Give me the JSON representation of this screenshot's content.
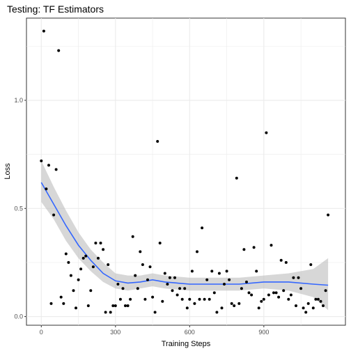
{
  "chart_data": {
    "type": "scatter",
    "title": "Testing: TF Estimators",
    "xlabel": "Training Steps",
    "ylabel": "Loss",
    "xlim": [
      -60,
      1230
    ],
    "ylim": [
      -0.04,
      1.38
    ],
    "x_ticks": [
      0,
      300,
      600,
      900
    ],
    "x_tick_labels": [
      "0",
      "300",
      "600",
      "900"
    ],
    "y_ticks": [
      0.0,
      0.5,
      1.0
    ],
    "y_tick_labels": [
      "0.0",
      "0.5",
      "1.0"
    ],
    "grid": true,
    "legend": "none",
    "colors": {
      "points": "#000000",
      "smooth_line": "#3366FF",
      "confidence_band": "#bdbdbd",
      "gridline": "#ebebeb",
      "panel_border": "#333333"
    },
    "points": [
      {
        "x": 0,
        "y": 0.72
      },
      {
        "x": 10,
        "y": 1.32
      },
      {
        "x": 20,
        "y": 0.59
      },
      {
        "x": 30,
        "y": 0.7
      },
      {
        "x": 40,
        "y": 0.06
      },
      {
        "x": 50,
        "y": 0.47
      },
      {
        "x": 60,
        "y": 0.68
      },
      {
        "x": 70,
        "y": 1.23
      },
      {
        "x": 80,
        "y": 0.09
      },
      {
        "x": 90,
        "y": 0.06
      },
      {
        "x": 100,
        "y": 0.29
      },
      {
        "x": 110,
        "y": 0.25
      },
      {
        "x": 120,
        "y": 0.19
      },
      {
        "x": 130,
        "y": 0.12
      },
      {
        "x": 140,
        "y": 0.04
      },
      {
        "x": 150,
        "y": 0.17
      },
      {
        "x": 160,
        "y": 0.22
      },
      {
        "x": 170,
        "y": 0.27
      },
      {
        "x": 180,
        "y": 0.28
      },
      {
        "x": 190,
        "y": 0.05
      },
      {
        "x": 200,
        "y": 0.12
      },
      {
        "x": 210,
        "y": 0.23
      },
      {
        "x": 220,
        "y": 0.34
      },
      {
        "x": 230,
        "y": 0.27
      },
      {
        "x": 240,
        "y": 0.34
      },
      {
        "x": 250,
        "y": 0.31
      },
      {
        "x": 260,
        "y": 0.02
      },
      {
        "x": 270,
        "y": 0.24
      },
      {
        "x": 280,
        "y": 0.02
      },
      {
        "x": 290,
        "y": 0.05
      },
      {
        "x": 300,
        "y": 0.05
      },
      {
        "x": 310,
        "y": 0.15
      },
      {
        "x": 320,
        "y": 0.08
      },
      {
        "x": 330,
        "y": 0.13
      },
      {
        "x": 340,
        "y": 0.05
      },
      {
        "x": 350,
        "y": 0.05
      },
      {
        "x": 360,
        "y": 0.08
      },
      {
        "x": 370,
        "y": 0.37
      },
      {
        "x": 380,
        "y": 0.19
      },
      {
        "x": 390,
        "y": 0.13
      },
      {
        "x": 400,
        "y": 0.3
      },
      {
        "x": 410,
        "y": 0.24
      },
      {
        "x": 420,
        "y": 0.08
      },
      {
        "x": 430,
        "y": 0.17
      },
      {
        "x": 440,
        "y": 0.23
      },
      {
        "x": 450,
        "y": 0.09
      },
      {
        "x": 460,
        "y": 0.02
      },
      {
        "x": 470,
        "y": 0.81
      },
      {
        "x": 480,
        "y": 0.34
      },
      {
        "x": 490,
        "y": 0.07
      },
      {
        "x": 500,
        "y": 0.2
      },
      {
        "x": 510,
        "y": 0.15
      },
      {
        "x": 520,
        "y": 0.18
      },
      {
        "x": 530,
        "y": 0.12
      },
      {
        "x": 540,
        "y": 0.18
      },
      {
        "x": 550,
        "y": 0.1
      },
      {
        "x": 560,
        "y": 0.13
      },
      {
        "x": 570,
        "y": 0.08
      },
      {
        "x": 580,
        "y": 0.13
      },
      {
        "x": 590,
        "y": 0.04
      },
      {
        "x": 600,
        "y": 0.08
      },
      {
        "x": 610,
        "y": 0.21
      },
      {
        "x": 620,
        "y": 0.06
      },
      {
        "x": 630,
        "y": 0.3
      },
      {
        "x": 640,
        "y": 0.08
      },
      {
        "x": 650,
        "y": 0.41
      },
      {
        "x": 660,
        "y": 0.08
      },
      {
        "x": 670,
        "y": 0.17
      },
      {
        "x": 680,
        "y": 0.08
      },
      {
        "x": 690,
        "y": 0.21
      },
      {
        "x": 700,
        "y": 0.11
      },
      {
        "x": 710,
        "y": 0.02
      },
      {
        "x": 720,
        "y": 0.2
      },
      {
        "x": 730,
        "y": 0.04
      },
      {
        "x": 740,
        "y": 0.15
      },
      {
        "x": 750,
        "y": 0.21
      },
      {
        "x": 760,
        "y": 0.17
      },
      {
        "x": 770,
        "y": 0.06
      },
      {
        "x": 780,
        "y": 0.05
      },
      {
        "x": 790,
        "y": 0.64
      },
      {
        "x": 800,
        "y": 0.06
      },
      {
        "x": 810,
        "y": 0.13
      },
      {
        "x": 820,
        "y": 0.31
      },
      {
        "x": 830,
        "y": 0.16
      },
      {
        "x": 840,
        "y": 0.11
      },
      {
        "x": 850,
        "y": 0.1
      },
      {
        "x": 860,
        "y": 0.32
      },
      {
        "x": 870,
        "y": 0.21
      },
      {
        "x": 880,
        "y": 0.04
      },
      {
        "x": 890,
        "y": 0.07
      },
      {
        "x": 900,
        "y": 0.08
      },
      {
        "x": 910,
        "y": 0.85
      },
      {
        "x": 920,
        "y": 0.1
      },
      {
        "x": 930,
        "y": 0.33
      },
      {
        "x": 940,
        "y": 0.11
      },
      {
        "x": 950,
        "y": 0.11
      },
      {
        "x": 960,
        "y": 0.09
      },
      {
        "x": 970,
        "y": 0.26
      },
      {
        "x": 980,
        "y": 0.12
      },
      {
        "x": 990,
        "y": 0.25
      },
      {
        "x": 1000,
        "y": 0.08
      },
      {
        "x": 1010,
        "y": 0.1
      },
      {
        "x": 1020,
        "y": 0.18
      },
      {
        "x": 1030,
        "y": 0.05
      },
      {
        "x": 1040,
        "y": 0.18
      },
      {
        "x": 1050,
        "y": 0.13
      },
      {
        "x": 1060,
        "y": 0.04
      },
      {
        "x": 1070,
        "y": 0.02
      },
      {
        "x": 1080,
        "y": 0.06
      },
      {
        "x": 1090,
        "y": 0.24
      },
      {
        "x": 1100,
        "y": 0.04
      },
      {
        "x": 1110,
        "y": 0.08
      },
      {
        "x": 1120,
        "y": 0.08
      },
      {
        "x": 1130,
        "y": 0.07
      },
      {
        "x": 1140,
        "y": 0.05
      },
      {
        "x": 1150,
        "y": 0.12
      },
      {
        "x": 1160,
        "y": 0.47
      }
    ],
    "smooth": {
      "method": "loess",
      "x": [
        0,
        50,
        100,
        150,
        200,
        250,
        300,
        350,
        400,
        450,
        500,
        600,
        700,
        800,
        900,
        1000,
        1100,
        1160
      ],
      "y": [
        0.62,
        0.52,
        0.42,
        0.33,
        0.26,
        0.2,
        0.165,
        0.155,
        0.16,
        0.17,
        0.16,
        0.15,
        0.15,
        0.15,
        0.16,
        0.16,
        0.15,
        0.145
      ],
      "lower": [
        0.53,
        0.45,
        0.35,
        0.27,
        0.21,
        0.16,
        0.13,
        0.12,
        0.13,
        0.14,
        0.13,
        0.12,
        0.12,
        0.12,
        0.13,
        0.12,
        0.09,
        0.03
      ],
      "upper": [
        0.72,
        0.6,
        0.49,
        0.39,
        0.31,
        0.25,
        0.2,
        0.19,
        0.19,
        0.2,
        0.19,
        0.18,
        0.18,
        0.18,
        0.19,
        0.2,
        0.22,
        0.27
      ]
    }
  }
}
